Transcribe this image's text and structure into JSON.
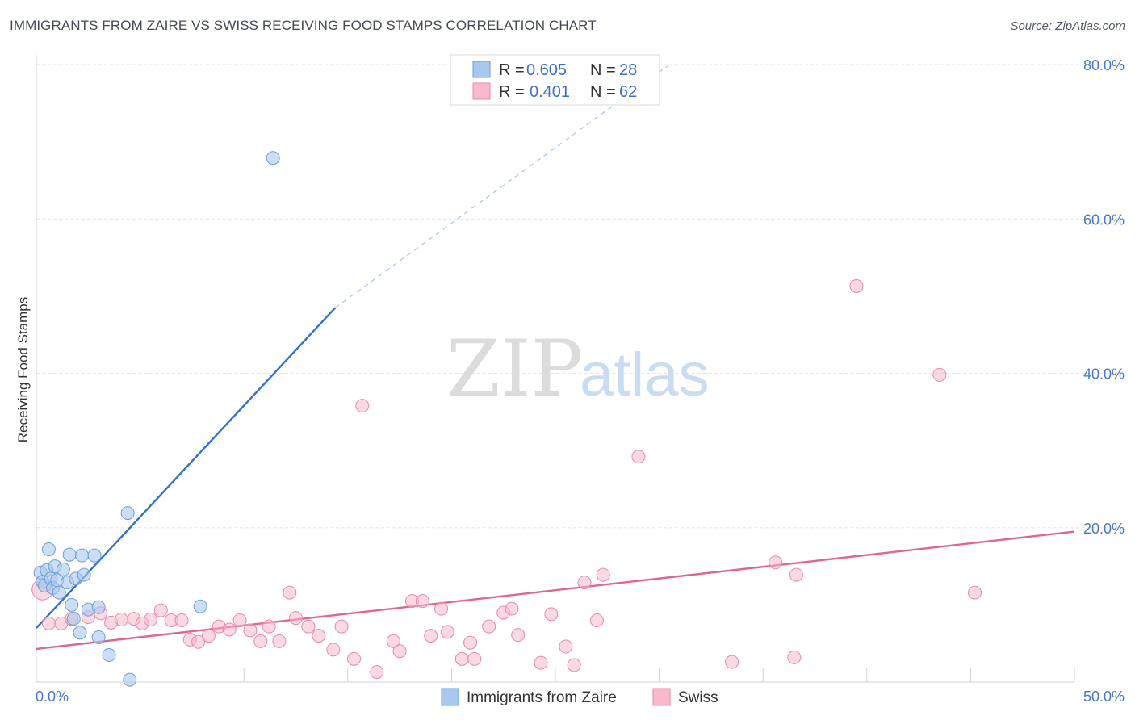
{
  "title": "IMMIGRANTS FROM ZAIRE VS SWISS RECEIVING FOOD STAMPS CORRELATION CHART",
  "source": "Source: ZipAtlas.com",
  "watermark": {
    "part1": "ZIP",
    "part2": "atlas"
  },
  "colors": {
    "blue_fill": "#a9c8ef",
    "blue_stroke": "#6f9fd8",
    "blue_line": "#2f72d0",
    "pink_fill": "#f7b9cb",
    "pink_stroke": "#e88aa6",
    "pink_line": "#e06590",
    "grid": "#e3e6ea",
    "axis": "#cfd3d8",
    "tick_label": "#4a78c4"
  },
  "legend": {
    "rows": [
      {
        "r_label": "R =",
        "r_value": "0.605",
        "n_label": "N =",
        "n_value": "28"
      },
      {
        "r_label": "R =",
        "r_value": "0.401",
        "n_label": "N =",
        "n_value": "62"
      }
    ]
  },
  "chart_data": {
    "type": "scatter",
    "xlabel": "",
    "ylabel": "Receiving Food Stamps",
    "xlim": [
      0,
      50
    ],
    "ylim": [
      0,
      80
    ],
    "x_tick_labels": [
      "0.0%",
      "50.0%"
    ],
    "y_ticks": [
      20,
      40,
      60,
      80
    ],
    "y_tick_labels": [
      "20.0%",
      "40.0%",
      "60.0%",
      "80.0%"
    ],
    "grid": true,
    "legend_position": "top-center",
    "series": [
      {
        "name": "Immigrants from Zaire",
        "color": "#a9c8ef",
        "points": [
          [
            0.2,
            14.2
          ],
          [
            0.3,
            13.0
          ],
          [
            0.4,
            12.5
          ],
          [
            0.5,
            14.5
          ],
          [
            0.6,
            17.2
          ],
          [
            0.7,
            13.4
          ],
          [
            0.8,
            12.2
          ],
          [
            0.9,
            15.0
          ],
          [
            1.0,
            13.2
          ],
          [
            1.1,
            11.6
          ],
          [
            1.3,
            14.6
          ],
          [
            1.5,
            12.9
          ],
          [
            1.6,
            16.5
          ],
          [
            1.7,
            10.0
          ],
          [
            1.8,
            8.2
          ],
          [
            1.9,
            13.4
          ],
          [
            2.1,
            6.4
          ],
          [
            2.2,
            16.4
          ],
          [
            2.3,
            13.9
          ],
          [
            2.5,
            9.4
          ],
          [
            2.8,
            16.4
          ],
          [
            3.0,
            9.7
          ],
          [
            3.0,
            5.8
          ],
          [
            3.5,
            3.5
          ],
          [
            4.4,
            21.9
          ],
          [
            4.5,
            0.3
          ],
          [
            7.9,
            9.8
          ],
          [
            11.4,
            67.9
          ]
        ],
        "trend": {
          "x": [
            0.0,
            14.4
          ],
          "y": [
            7.0,
            48.5
          ],
          "dashed_to": [
            30.5,
            80.0
          ]
        }
      },
      {
        "name": "Swiss",
        "color": "#f7b9cb",
        "points": [
          [
            0.3,
            12.0
          ],
          [
            0.6,
            7.6
          ],
          [
            1.2,
            7.6
          ],
          [
            1.7,
            8.2
          ],
          [
            2.5,
            8.4
          ],
          [
            3.1,
            8.9
          ],
          [
            3.6,
            7.7
          ],
          [
            4.1,
            8.1
          ],
          [
            4.7,
            8.2
          ],
          [
            5.1,
            7.6
          ],
          [
            5.5,
            8.1
          ],
          [
            6.0,
            9.3
          ],
          [
            6.5,
            8.0
          ],
          [
            7.0,
            8.0
          ],
          [
            7.4,
            5.5
          ],
          [
            7.8,
            5.2
          ],
          [
            8.3,
            6.0
          ],
          [
            8.8,
            7.2
          ],
          [
            9.3,
            6.8
          ],
          [
            9.8,
            8.0
          ],
          [
            10.3,
            6.7
          ],
          [
            10.8,
            5.3
          ],
          [
            11.2,
            7.2
          ],
          [
            11.7,
            5.3
          ],
          [
            12.2,
            11.6
          ],
          [
            12.5,
            8.3
          ],
          [
            13.1,
            7.2
          ],
          [
            13.6,
            6.0
          ],
          [
            14.3,
            4.2
          ],
          [
            14.7,
            7.2
          ],
          [
            15.3,
            3.0
          ],
          [
            15.7,
            35.8
          ],
          [
            16.4,
            1.3
          ],
          [
            17.2,
            5.3
          ],
          [
            17.5,
            4.0
          ],
          [
            18.1,
            10.5
          ],
          [
            18.6,
            10.5
          ],
          [
            19.0,
            6.0
          ],
          [
            19.5,
            9.5
          ],
          [
            19.8,
            6.5
          ],
          [
            20.5,
            3.0
          ],
          [
            20.9,
            5.1
          ],
          [
            21.1,
            3.0
          ],
          [
            21.8,
            7.2
          ],
          [
            22.5,
            9.0
          ],
          [
            22.9,
            9.5
          ],
          [
            23.2,
            6.1
          ],
          [
            24.3,
            2.5
          ],
          [
            24.8,
            8.8
          ],
          [
            25.5,
            4.6
          ],
          [
            25.9,
            2.2
          ],
          [
            26.4,
            12.9
          ],
          [
            27.0,
            8.0
          ],
          [
            27.3,
            13.9
          ],
          [
            29.0,
            29.2
          ],
          [
            33.5,
            2.6
          ],
          [
            35.6,
            15.5
          ],
          [
            36.5,
            3.2
          ],
          [
            36.6,
            13.9
          ],
          [
            39.5,
            51.3
          ],
          [
            43.5,
            39.8
          ],
          [
            45.2,
            11.6
          ]
        ],
        "trend": {
          "x": [
            0.0,
            50.0
          ],
          "y": [
            4.3,
            19.5
          ]
        }
      }
    ]
  }
}
